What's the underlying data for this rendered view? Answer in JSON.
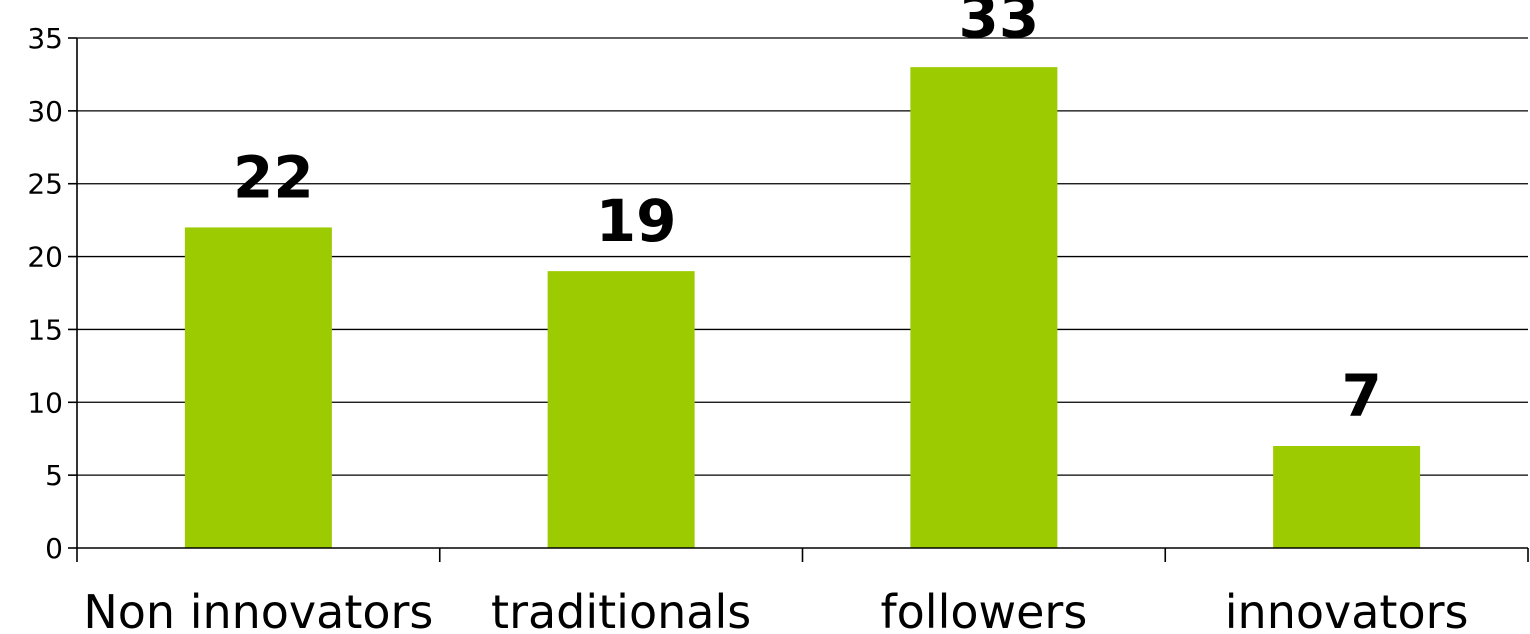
{
  "chart_data": {
    "type": "bar",
    "title": "",
    "xlabel": "",
    "ylabel": "",
    "categories": [
      "Non innovators",
      "traditionals",
      "followers",
      "innovators"
    ],
    "values": [
      22,
      19,
      33,
      7
    ],
    "data_labels": [
      "22",
      "19",
      "33",
      "7"
    ],
    "ylim": [
      0,
      35
    ],
    "yticks": [
      0,
      5,
      10,
      15,
      20,
      25,
      30,
      35
    ],
    "ytick_labels": [
      "0",
      "5",
      "10",
      "15",
      "20",
      "25",
      "30",
      "35"
    ],
    "grid": true,
    "legend": "none",
    "bar_color": "#9BCB00"
  }
}
